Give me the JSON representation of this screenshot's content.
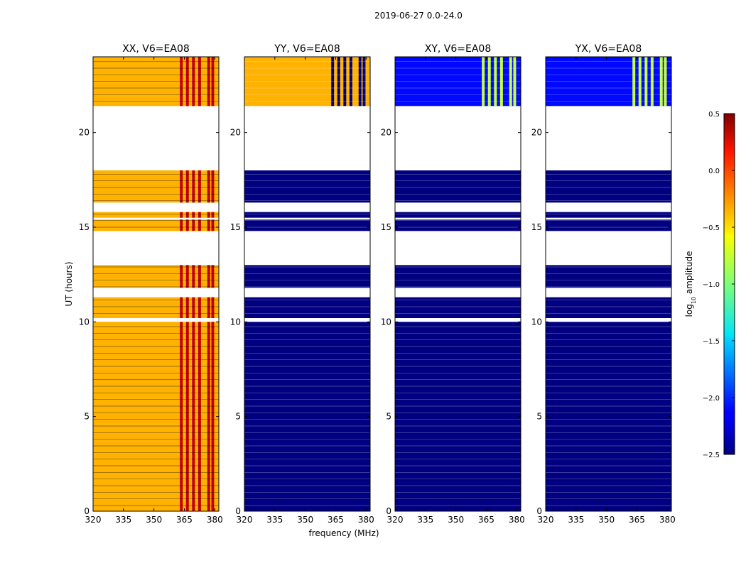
{
  "figure": {
    "suptitle": "2019-06-27 0.0-24.0",
    "xlabel": "frequency (MHz)",
    "ylabel": "UT (hours)",
    "colorbar_label_prefix": "log",
    "colorbar_label_sub": "10",
    "colorbar_label_suffix": " amplitude"
  },
  "chart_data": {
    "type": "heatmap",
    "title": "2019-06-27 0.0-24.0",
    "xlabel": "frequency (MHz)",
    "ylabel": "UT (hours)",
    "xlim": [
      320,
      382
    ],
    "ylim": [
      0,
      24
    ],
    "xticks": [
      320,
      335,
      350,
      365,
      380
    ],
    "yticks": [
      0,
      5,
      10,
      15,
      20
    ],
    "colorbar": {
      "label": "log10 amplitude",
      "range": [
        -2.5,
        0.5
      ],
      "ticks": [
        0.5,
        0.0,
        -0.5,
        -1.0,
        -1.5,
        -2.0,
        -2.5
      ],
      "tick_labels": [
        "0.5",
        "0.0",
        "−0.5",
        "−1.0",
        "−1.5",
        "−2.0",
        "−2.5"
      ],
      "colormap": "jet"
    },
    "rfi_channels_mhz": [
      363.5,
      366.5,
      369.5,
      372.5,
      377.0,
      379.0
    ],
    "ut_data_blocks_hours": [
      [
        0.0,
        10.0
      ],
      [
        10.2,
        11.3
      ],
      [
        11.8,
        13.0
      ],
      [
        14.8,
        15.4
      ],
      [
        15.5,
        15.8
      ],
      [
        16.3,
        18.0
      ],
      [
        21.4,
        24.0
      ]
    ],
    "panels": [
      {
        "title": "XX, V6=EA08",
        "polarization": "XX",
        "typical_log10_amp": -0.4,
        "rfi_log10_amp": 0.3
      },
      {
        "title": "YY, V6=EA08",
        "polarization": "YY",
        "typical_log10_amp": -2.5,
        "rfi_log10_amp": -2.5,
        "upper_block_log10_amp": -0.4
      },
      {
        "title": "XY, V6=EA08",
        "polarization": "XY",
        "typical_log10_amp": -2.5,
        "upper_block_log10_amp": -2.1,
        "rfi_log10_amp": -0.8
      },
      {
        "title": "YX, V6=EA08",
        "polarization": "YX",
        "typical_log10_amp": -2.5,
        "upper_block_log10_amp": -2.1,
        "rfi_log10_amp": -0.8
      }
    ]
  }
}
